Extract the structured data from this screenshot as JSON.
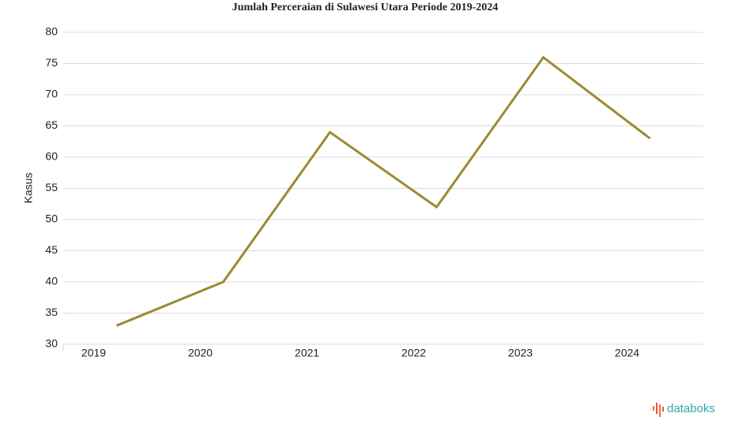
{
  "chart_data": {
    "type": "line",
    "title": "Jumlah Perceraian di Sulawesi Utara Periode 2019-2024",
    "y_label": "Kasus",
    "categories": [
      "2019",
      "2020",
      "2021",
      "2022",
      "2023",
      "2024"
    ],
    "series": [
      {
        "name": "Kasus",
        "color": "#9a8a33",
        "values": [
          33,
          40,
          64,
          52,
          76,
          63
        ]
      }
    ],
    "ylim": [
      30,
      80
    ],
    "yticks": [
      30,
      35,
      40,
      45,
      50,
      55,
      60,
      65,
      70,
      75,
      80
    ],
    "grid": true,
    "legend": false
  },
  "brand": "databoks"
}
